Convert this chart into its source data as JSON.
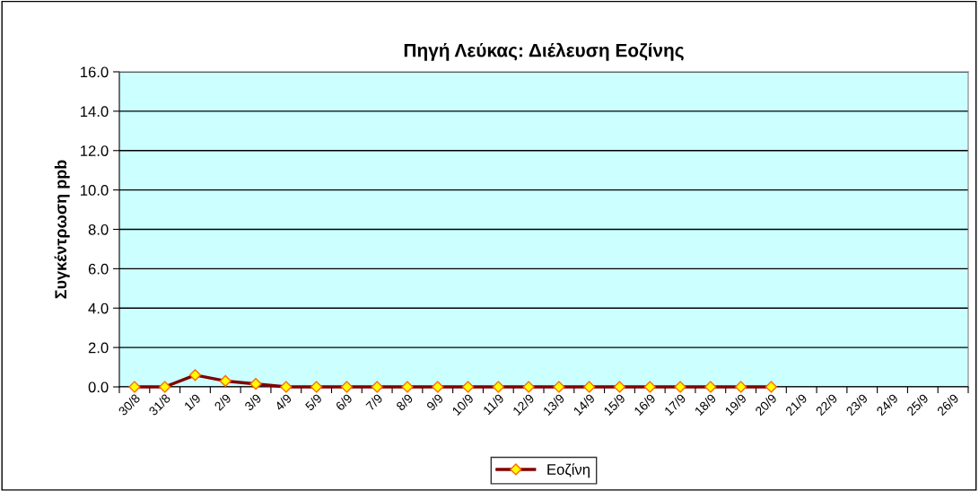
{
  "chart_data": {
    "type": "line",
    "title": "Πηγή Λεύκας: Διέλευση Εοζίνης",
    "ylabel": "Συγκέντρωση ppb",
    "categories": [
      "30/8",
      "31/8",
      "1/9",
      "2/9",
      "3/9",
      "4/9",
      "5/9",
      "6/9",
      "7/9",
      "8/9",
      "9/9",
      "10/9",
      "11/9",
      "12/9",
      "13/9",
      "14/9",
      "15/9",
      "16/9",
      "17/9",
      "18/9",
      "19/9",
      "20/9",
      "21/9",
      "22/9",
      "23/9",
      "24/9",
      "25/9",
      "26/9"
    ],
    "series": [
      {
        "name": "Εοζίνη",
        "color": "#800000",
        "values": [
          0,
          0,
          0.6,
          0.3,
          0.15,
          0,
          0,
          0,
          0,
          0,
          0,
          0,
          0,
          0,
          0,
          0,
          0,
          0,
          0,
          0,
          0,
          0,
          null,
          null,
          null,
          null,
          null,
          null
        ]
      }
    ],
    "ylim": [
      0,
      16
    ],
    "yticks": [
      {
        "value": 0,
        "label": "0.0"
      },
      {
        "value": 2,
        "label": "2.0"
      },
      {
        "value": 4,
        "label": "4.0"
      },
      {
        "value": 6,
        "label": "6.0"
      },
      {
        "value": 8,
        "label": "8.0"
      },
      {
        "value": 10,
        "label": "10.0"
      },
      {
        "value": 12,
        "label": "12.0"
      },
      {
        "value": 14,
        "label": "14.0"
      },
      {
        "value": 16,
        "label": "16.0"
      }
    ],
    "grid": "y",
    "legend": "bottom",
    "marker": "diamond",
    "line_style": "solid"
  }
}
